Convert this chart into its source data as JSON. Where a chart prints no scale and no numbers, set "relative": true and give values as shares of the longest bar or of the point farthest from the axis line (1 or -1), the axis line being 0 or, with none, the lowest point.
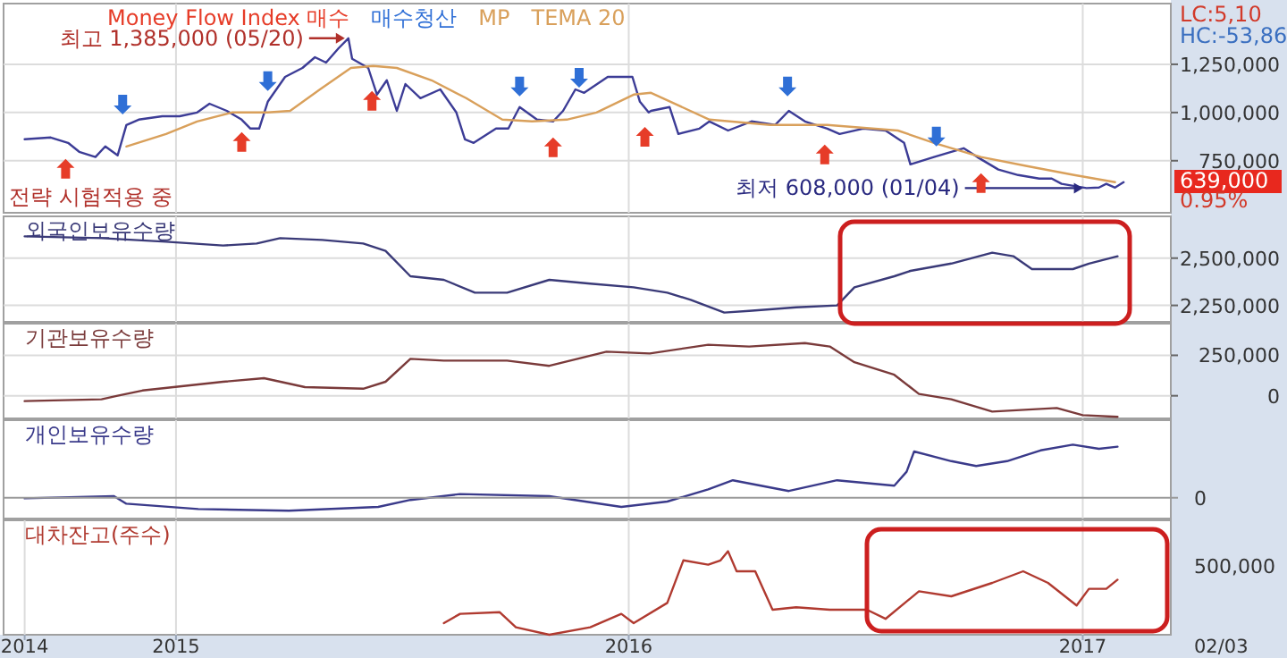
{
  "chart_data": [
    {
      "type": "line",
      "legend": "top left",
      "grid": true,
      "tick_labels": "y",
      "xlim": [
        "2014-08-15",
        "2017-03-13"
      ],
      "xticks": [
        {
          "value": "2015-01-01",
          "label": null
        },
        {
          "value": "2016-01-01",
          "label": null
        },
        {
          "value": "2017-01-01",
          "label": null
        }
      ],
      "ylim": [
        480000,
        1565000
      ],
      "yticks": [
        {
          "value": 750000,
          "label": "750,000"
        },
        {
          "value": 1000000,
          "label": "1,000,000"
        },
        {
          "value": 1250000,
          "label": "1,250,000"
        }
      ],
      "series": [
        {
          "type": "line",
          "color": "#3c3c96",
          "x": [
            "2014-09-01",
            "2014-09-22",
            "2014-10-06",
            "2014-10-15",
            "2014-10-28",
            "2014-11-05",
            "2014-11-15",
            "2014-11-22",
            "2014-12-02",
            "2014-12-21",
            "2015-01-04",
            "2015-01-18",
            "2015-01-28",
            "2015-02-11",
            "2015-02-23",
            "2015-03-02",
            "2015-03-09",
            "2015-03-16",
            "2015-03-30",
            "2015-04-13",
            "2015-04-23",
            "2015-05-02",
            "2015-05-12",
            "2015-05-20",
            "2015-05-23",
            "2015-06-05",
            "2015-06-12",
            "2015-06-20",
            "2015-06-28",
            "2015-07-05",
            "2015-07-17",
            "2015-08-02",
            "2015-08-15",
            "2015-08-22",
            "2015-08-29",
            "2015-09-16",
            "2015-09-26",
            "2015-10-05",
            "2015-10-19",
            "2015-11-01",
            "2015-11-09",
            "2015-11-19",
            "2015-11-26",
            "2015-12-15",
            "2016-01-04",
            "2016-01-10",
            "2016-01-17",
            "2016-01-19",
            "2016-02-03",
            "2016-02-10",
            "2016-02-27",
            "2016-03-06",
            "2016-03-21",
            "2016-04-09",
            "2016-04-28",
            "2016-05-09",
            "2016-05-22",
            "2016-06-09",
            "2016-06-19",
            "2016-07-08",
            "2016-07-26",
            "2016-08-10",
            "2016-08-15",
            "2016-09-03",
            "2016-09-17",
            "2016-09-27",
            "2016-10-08",
            "2016-10-25",
            "2016-11-10",
            "2016-11-27",
            "2016-12-07",
            "2016-12-15",
            "2017-01-04",
            "2017-01-14",
            "2017-01-20",
            "2017-01-27",
            "2017-02-03"
          ],
          "values": [
            861000,
            870000,
            843000,
            796000,
            769000,
            824000,
            778000,
            935000,
            963000,
            981000,
            981000,
            1000000,
            1046000,
            1009000,
            963000,
            917000,
            917000,
            1056000,
            1185000,
            1231000,
            1287000,
            1259000,
            1333000,
            1385000,
            1278000,
            1231000,
            1093000,
            1167000,
            1009000,
            1148000,
            1074000,
            1120000,
            1000000,
            861000,
            843000,
            917000,
            917000,
            1028000,
            963000,
            954000,
            1009000,
            1120000,
            1102000,
            1185000,
            1185000,
            1056000,
            1000000,
            1009000,
            1028000,
            889000,
            917000,
            954000,
            907000,
            954000,
            935000,
            1009000,
            954000,
            917000,
            889000,
            917000,
            907000,
            843000,
            731000,
            769000,
            796000,
            815000,
            769000,
            704000,
            676000,
            657000,
            657000,
            630000,
            608000,
            611000,
            630000,
            611000,
            639000
          ]
        },
        {
          "name": "Money Flow Index 매수",
          "type": "scatter",
          "color": "#e63c28",
          "x": [
            "2014-10-04",
            "2015-02-23",
            "2015-06-08",
            "2015-11-01",
            "2016-01-14",
            "2016-06-07",
            "2016-10-11"
          ],
          "values": [
            704000,
            843000,
            1056000,
            815000,
            870000,
            778000,
            630000
          ]
        },
        {
          "name": "매수청산",
          "type": "scatter",
          "color": "#2f6fd6",
          "x": [
            "2014-11-19",
            "2015-03-16",
            "2015-10-05",
            "2015-11-22",
            "2016-05-08",
            "2016-09-05"
          ],
          "values": [
            1046000,
            1167000,
            1139000,
            1185000,
            1139000,
            880000
          ]
        },
        {
          "name": "TEMA 20",
          "type": "line",
          "color": "#d9a05b",
          "x": [
            "2014-11-22",
            "2014-12-24",
            "2015-01-18",
            "2015-02-15",
            "2015-03-16",
            "2015-04-03",
            "2015-04-27",
            "2015-05-22",
            "2015-06-09",
            "2015-06-28",
            "2015-07-26",
            "2015-08-23",
            "2015-09-21",
            "2015-10-15",
            "2015-11-12",
            "2015-12-06",
            "2016-01-05",
            "2016-01-19",
            "2016-03-06",
            "2016-04-24",
            "2016-06-09",
            "2016-08-05",
            "2016-09-03",
            "2016-10-11",
            "2016-11-17",
            "2016-12-25",
            "2017-01-27"
          ],
          "values": [
            824000,
            889000,
            954000,
            1000000,
            1000000,
            1009000,
            1120000,
            1231000,
            1241000,
            1231000,
            1167000,
            1074000,
            963000,
            954000,
            963000,
            1000000,
            1093000,
            1102000,
            963000,
            935000,
            935000,
            907000,
            843000,
            769000,
            722000,
            676000,
            639000
          ]
        }
      ],
      "annotations": [
        "MP",
        {
          "text": "최고 1,385,000 (05/20)",
          "x": "2015-05-20",
          "y": 1385000
        },
        {
          "text": "최저 608,000 (01/04)",
          "x": "2017-01-04",
          "y": 608000
        },
        "전략 시험적용 중",
        "LC:5,10",
        "HC:-53,86",
        "639,000",
        "0.95%"
      ]
    },
    {
      "type": "line",
      "title": "외국인보유수량",
      "grid": true,
      "tick_labels": "y",
      "xlim": [
        "2014-08-15",
        "2017-03-13"
      ],
      "xticks": [
        {
          "value": "2015-01-01",
          "label": null
        },
        {
          "value": "2016-01-01",
          "label": null
        },
        {
          "value": "2017-01-01",
          "label": null
        }
      ],
      "ylim": [
        2163000,
        2721000
      ],
      "yticks": [
        {
          "value": 2250000,
          "label": "2,250,000"
        },
        {
          "value": 2500000,
          "label": "2,500,000"
        }
      ],
      "series": [
        {
          "color": "#3a3a78",
          "x": [
            "2014-09-01",
            "2014-11-02",
            "2014-12-24",
            "2015-02-08",
            "2015-03-07",
            "2015-03-26",
            "2015-04-29",
            "2015-06-01",
            "2015-06-19",
            "2015-07-09",
            "2015-08-05",
            "2015-08-30",
            "2015-09-25",
            "2015-10-29",
            "2015-12-01",
            "2016-01-05",
            "2016-02-01",
            "2016-02-20",
            "2016-03-18",
            "2016-04-07",
            "2016-05-15",
            "2016-06-17",
            "2016-07-01",
            "2016-08-02",
            "2016-08-15",
            "2016-09-17",
            "2016-10-20",
            "2016-11-06",
            "2016-11-21",
            "2016-12-24",
            "2017-01-06",
            "2017-01-29"
          ],
          "values": [
            2615000,
            2606000,
            2587000,
            2567000,
            2577000,
            2606000,
            2596000,
            2577000,
            2538000,
            2404000,
            2385000,
            2317000,
            2317000,
            2385000,
            2365000,
            2346000,
            2317000,
            2279000,
            2212000,
            2221000,
            2240000,
            2250000,
            2346000,
            2404000,
            2433000,
            2471000,
            2529000,
            2510000,
            2442000,
            2442000,
            2471000,
            2510000
          ]
        }
      ]
    },
    {
      "type": "line",
      "title": "기관보유수량",
      "grid": true,
      "tick_labels": "y",
      "xlim": [
        "2014-08-15",
        "2017-03-13"
      ],
      "xticks": [
        {
          "value": "2015-01-01",
          "label": null
        },
        {
          "value": "2016-01-01",
          "label": null
        },
        {
          "value": "2017-01-01",
          "label": null
        }
      ],
      "ylim": [
        -140000,
        446000
      ],
      "yticks": [
        0,
        {
          "value": 250000,
          "label": "250,000"
        }
      ],
      "series": [
        {
          "color": "#7a3a3a",
          "x": [
            "2014-09-01",
            "2014-11-02",
            "2014-11-15",
            "2014-12-05",
            "2015-02-08",
            "2015-03-13",
            "2015-04-15",
            "2015-06-01",
            "2015-06-19",
            "2015-07-09",
            "2015-08-05",
            "2015-09-25",
            "2015-10-29",
            "2015-12-14",
            "2016-01-18",
            "2016-03-05",
            "2016-04-07",
            "2016-05-22",
            "2016-06-11",
            "2016-07-01",
            "2016-08-02",
            "2016-08-22",
            "2016-09-17",
            "2016-10-20",
            "2016-12-11",
            "2017-01-01",
            "2017-01-29"
          ],
          "values": [
            -33000,
            -22000,
            0,
            33000,
            87000,
            109000,
            54000,
            43000,
            87000,
            228000,
            217000,
            217000,
            185000,
            272000,
            261000,
            315000,
            304000,
            326000,
            304000,
            207000,
            130000,
            11000,
            -22000,
            -98000,
            -76000,
            -120000,
            -130000
          ]
        }
      ]
    },
    {
      "type": "line",
      "title": "개인보유수량",
      "relative": true,
      "grid": "x",
      "tick_labels": false,
      "xlim": [
        "2014-08-15",
        "2017-03-13"
      ],
      "xticks": [
        {
          "value": "2015-01-01",
          "label": null
        },
        {
          "value": "2016-01-01",
          "label": null
        },
        {
          "value": "2017-01-01",
          "label": null
        }
      ],
      "series": [
        {
          "color": "#3a3a8a",
          "x": [
            "2014-09-01",
            "2014-11-12",
            "2014-11-22",
            "2015-01-19",
            "2015-04-02",
            "2015-06-13",
            "2015-07-09",
            "2015-08-18",
            "2015-10-29",
            "2015-12-26",
            "2016-02-01",
            "2016-03-05",
            "2016-03-25",
            "2016-05-09",
            "2016-06-17",
            "2016-08-02",
            "2016-08-12",
            "2016-08-18",
            "2016-09-17",
            "2016-10-07",
            "2016-11-01",
            "2016-11-28",
            "2016-12-24",
            "2017-01-14",
            "2017-01-29"
          ],
          "values": [
            -0.01,
            0.03,
            -0.11,
            -0.21,
            -0.24,
            -0.17,
            -0.04,
            0.07,
            0.03,
            -0.17,
            -0.07,
            0.16,
            0.33,
            0.13,
            0.33,
            0.23,
            0.49,
            0.87,
            0.69,
            0.6,
            0.69,
            0.89,
            1,
            0.92,
            0.96
          ]
        }
      ],
      "annotations": [
        "0"
      ]
    },
    {
      "type": "line",
      "title": "대차잔고(주수)",
      "relative": true,
      "grid": "x",
      "tick_labels": "x",
      "xlim": [
        "2014-08-15",
        "2017-03-13"
      ],
      "xticks": [
        {
          "value": "2014-09-01",
          "label": "2014"
        },
        {
          "value": "2015-01-01",
          "label": "2015"
        },
        {
          "value": "2016-01-01",
          "label": "2016"
        },
        {
          "value": "2017-01-01",
          "label": "2017"
        }
      ],
      "series": [
        {
          "color": "#b03a30",
          "x": [
            "2015-08-05",
            "2015-08-18",
            "2015-09-19",
            "2015-10-02",
            "2015-10-29",
            "2015-12-01",
            "2015-12-26",
            "2016-01-05",
            "2016-02-01",
            "2016-02-14",
            "2016-03-05",
            "2016-03-15",
            "2016-03-21",
            "2016-03-28",
            "2016-04-12",
            "2016-04-26",
            "2016-05-15",
            "2016-06-11",
            "2016-07-11",
            "2016-07-26",
            "2016-08-22",
            "2016-09-17",
            "2016-10-20",
            "2016-11-14",
            "2016-12-04",
            "2016-12-27",
            "2017-01-06",
            "2017-01-20",
            "2017-01-29"
          ],
          "values": [
            0.14,
            0.25,
            0.27,
            0.09,
            0,
            0.09,
            0.25,
            0.14,
            0.38,
            0.89,
            0.84,
            0.89,
            1,
            0.76,
            0.76,
            0.3,
            0.33,
            0.3,
            0.3,
            0.19,
            0.52,
            0.46,
            0.62,
            0.76,
            0.62,
            0.35,
            0.55,
            0.55,
            0.66
          ]
        }
      ],
      "annotations": [
        "500,000",
        "02/03"
      ]
    }
  ]
}
